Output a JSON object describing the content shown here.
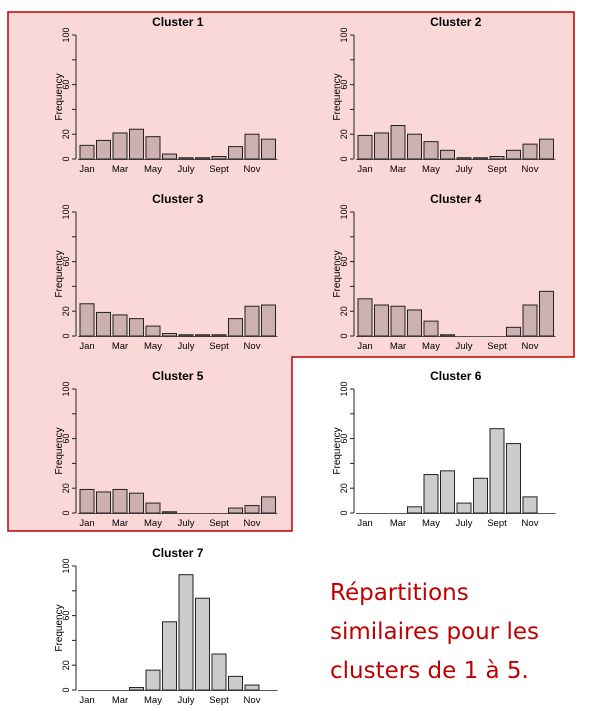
{
  "highlight": {
    "fill": "#fbd8d8",
    "stroke": "#c00000"
  },
  "colors": {
    "highlighted_bar": "#cdb0b0",
    "plain_bar": "#cccccc",
    "axis": "#222222"
  },
  "caption": "Répartitions\nsimilaires pour les\nclusters de 1 à 5.",
  "chart_data": [
    {
      "type": "bar",
      "title": "Cluster 1",
      "ylabel": "Frequency",
      "ylim": [
        0,
        100
      ],
      "yticks": [
        0,
        20,
        60,
        100
      ],
      "categories": [
        "Jan",
        "Feb",
        "Mar",
        "Apr",
        "May",
        "Jun",
        "July",
        "Aug",
        "Sept",
        "Oct",
        "Nov",
        "Dec"
      ],
      "xtick_labels": [
        "Jan",
        "",
        "Mar",
        "",
        "May",
        "",
        "July",
        "",
        "Sept",
        "",
        "Nov",
        ""
      ],
      "values": [
        11,
        15,
        21,
        24,
        18,
        4,
        1,
        1,
        2,
        10,
        20,
        16
      ],
      "highlighted": true
    },
    {
      "type": "bar",
      "title": "Cluster 2",
      "ylabel": "Frequency",
      "ylim": [
        0,
        100
      ],
      "yticks": [
        0,
        20,
        60,
        100
      ],
      "categories": [
        "Jan",
        "Feb",
        "Mar",
        "Apr",
        "May",
        "Jun",
        "July",
        "Aug",
        "Sept",
        "Oct",
        "Nov",
        "Dec"
      ],
      "xtick_labels": [
        "Jan",
        "",
        "Mar",
        "",
        "May",
        "",
        "July",
        "",
        "Sept",
        "",
        "Nov",
        ""
      ],
      "values": [
        19,
        21,
        27,
        20,
        14,
        7,
        1,
        1,
        2,
        7,
        12,
        16
      ],
      "highlighted": true
    },
    {
      "type": "bar",
      "title": "Cluster 3",
      "ylabel": "Frequency",
      "ylim": [
        0,
        100
      ],
      "yticks": [
        0,
        20,
        60,
        100
      ],
      "categories": [
        "Jan",
        "Feb",
        "Mar",
        "Apr",
        "May",
        "Jun",
        "July",
        "Aug",
        "Sept",
        "Oct",
        "Nov",
        "Dec"
      ],
      "xtick_labels": [
        "Jan",
        "",
        "Mar",
        "",
        "May",
        "",
        "July",
        "",
        "Sept",
        "",
        "Nov",
        ""
      ],
      "values": [
        26,
        19,
        17,
        14,
        8,
        2,
        1,
        1,
        1,
        14,
        24,
        25
      ],
      "highlighted": true
    },
    {
      "type": "bar",
      "title": "Cluster 4",
      "ylabel": "Frequency",
      "ylim": [
        0,
        100
      ],
      "yticks": [
        0,
        20,
        60,
        100
      ],
      "categories": [
        "Jan",
        "Feb",
        "Mar",
        "Apr",
        "May",
        "Jun",
        "July",
        "Aug",
        "Sept",
        "Oct",
        "Nov",
        "Dec"
      ],
      "xtick_labels": [
        "Jan",
        "",
        "Mar",
        "",
        "May",
        "",
        "July",
        "",
        "Sept",
        "",
        "Nov",
        ""
      ],
      "values": [
        30,
        25,
        24,
        21,
        12,
        1,
        0,
        0,
        0,
        7,
        25,
        36
      ],
      "highlighted": true
    },
    {
      "type": "bar",
      "title": "Cluster 5",
      "ylabel": "Frequency",
      "ylim": [
        0,
        100
      ],
      "yticks": [
        0,
        20,
        60,
        100
      ],
      "categories": [
        "Jan",
        "Feb",
        "Mar",
        "Apr",
        "May",
        "Jun",
        "July",
        "Aug",
        "Sept",
        "Oct",
        "Nov",
        "Dec"
      ],
      "xtick_labels": [
        "Jan",
        "",
        "Mar",
        "",
        "May",
        "",
        "July",
        "",
        "Sept",
        "",
        "Nov",
        ""
      ],
      "values": [
        19,
        17,
        19,
        16,
        8,
        1,
        0,
        0,
        0,
        4,
        6,
        13
      ],
      "highlighted": true
    },
    {
      "type": "bar",
      "title": "Cluster 6",
      "ylabel": "Frequency",
      "ylim": [
        0,
        100
      ],
      "yticks": [
        0,
        20,
        60,
        100
      ],
      "categories": [
        "Jan",
        "Feb",
        "Mar",
        "Apr",
        "May",
        "Jun",
        "July",
        "Aug",
        "Sept",
        "Oct",
        "Nov",
        "Dec"
      ],
      "xtick_labels": [
        "Jan",
        "",
        "Mar",
        "",
        "May",
        "",
        "July",
        "",
        "Sept",
        "",
        "Nov",
        ""
      ],
      "values": [
        0,
        0,
        0,
        5,
        31,
        34,
        8,
        28,
        68,
        56,
        13,
        0
      ],
      "highlighted": false
    },
    {
      "type": "bar",
      "title": "Cluster 7",
      "ylabel": "Frequency",
      "ylim": [
        0,
        100
      ],
      "yticks": [
        0,
        20,
        60,
        100
      ],
      "categories": [
        "Jan",
        "Feb",
        "Mar",
        "Apr",
        "May",
        "Jun",
        "July",
        "Aug",
        "Sept",
        "Oct",
        "Nov",
        "Dec"
      ],
      "xtick_labels": [
        "Jan",
        "",
        "Mar",
        "",
        "May",
        "",
        "July",
        "",
        "Sept",
        "",
        "Nov",
        ""
      ],
      "values": [
        0,
        0,
        0,
        2,
        16,
        55,
        93,
        74,
        29,
        11,
        4,
        0
      ],
      "highlighted": false
    }
  ]
}
